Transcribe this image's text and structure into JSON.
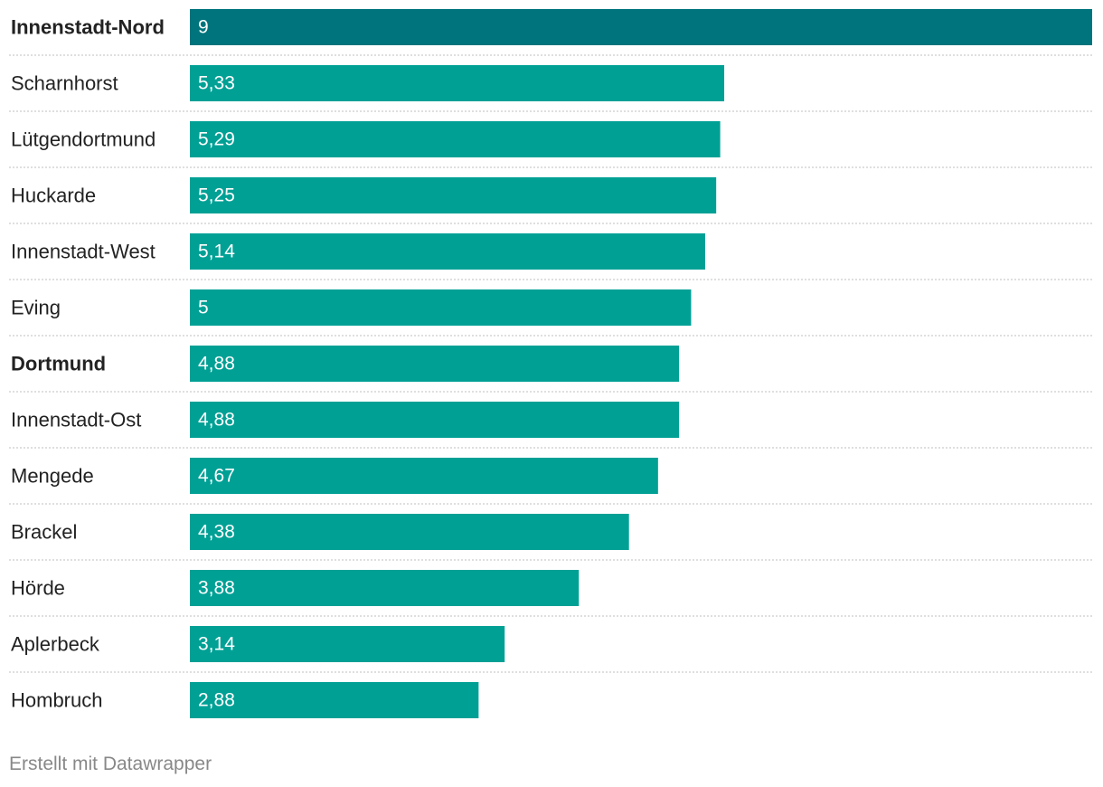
{
  "chart_data": {
    "type": "bar",
    "orientation": "horizontal",
    "categories": [
      "Innenstadt-Nord",
      "Scharnhorst",
      "Lütgendortmund",
      "Huckarde",
      "Innenstadt-West",
      "Eving",
      "Dortmund",
      "Innenstadt-Ost",
      "Mengede",
      "Brackel",
      "Hörde",
      "Aplerbeck",
      "Hombruch"
    ],
    "values": [
      9,
      5.33,
      5.29,
      5.25,
      5.14,
      5,
      4.88,
      4.88,
      4.67,
      4.38,
      3.88,
      3.14,
      2.88
    ],
    "value_labels": [
      "9",
      "5,33",
      "5,29",
      "5,25",
      "5,14",
      "5",
      "4,88",
      "4,88",
      "4,67",
      "4,38",
      "3,88",
      "3,14",
      "2,88"
    ],
    "bold_categories": [
      "Innenstadt-Nord",
      "Dortmund"
    ],
    "highlight_category": "Innenstadt-Nord",
    "xlim": [
      0,
      9
    ],
    "grid": false,
    "colors": {
      "bar": "#00a095",
      "highlight": "#00747c",
      "label": "#222222",
      "value_text": "#ffffff",
      "separator": "#cccccc"
    }
  },
  "footer": {
    "credit": "Erstellt mit Datawrapper"
  }
}
